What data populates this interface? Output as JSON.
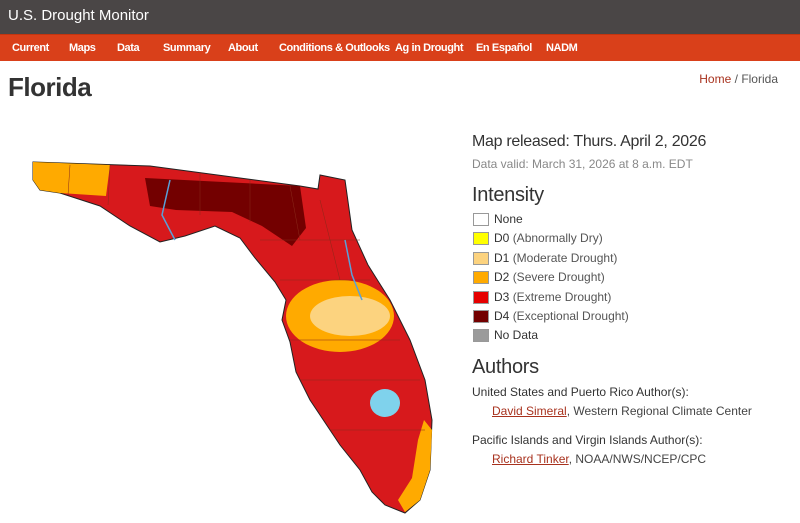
{
  "header": {
    "site_title": "U.S. Drought Monitor"
  },
  "nav": [
    "Current",
    "Maps",
    "Data",
    "Summary",
    "About",
    "Conditions & Outlooks",
    "Ag in Drought",
    "En Español",
    "NADM"
  ],
  "breadcrumb": {
    "home": "Home",
    "separator": "/",
    "current": "Florida"
  },
  "page_title": "Florida",
  "release": {
    "released": "Map released: Thurs. April 2, 2026",
    "valid": "Data valid: March 31, 2026 at 8 a.m. EDT"
  },
  "intensity": {
    "title": "Intensity",
    "items": [
      {
        "code": "None",
        "desc": "",
        "color": "#ffffff"
      },
      {
        "code": "D0",
        "desc": "(Abnormally Dry)",
        "color": "#ffff00"
      },
      {
        "code": "D1",
        "desc": "(Moderate Drought)",
        "color": "#fcd37f"
      },
      {
        "code": "D2",
        "desc": "(Severe Drought)",
        "color": "#ffaa00"
      },
      {
        "code": "D3",
        "desc": "(Extreme Drought)",
        "color": "#e60000"
      },
      {
        "code": "D4",
        "desc": "(Exceptional Drought)",
        "color": "#730000"
      },
      {
        "code": "No Data",
        "desc": "",
        "color": "#9b9b9b"
      }
    ]
  },
  "authors": {
    "title": "Authors",
    "groups": [
      {
        "heading": "United States and Puerto Rico Author(s):",
        "name": "David Simeral",
        "affiliation": ", Western Regional Climate Center"
      },
      {
        "heading": "Pacific Islands and Virgin Islands Author(s):",
        "name": "Richard Tinker",
        "affiliation": ", NOAA/NWS/NCEP/CPC"
      }
    ]
  }
}
